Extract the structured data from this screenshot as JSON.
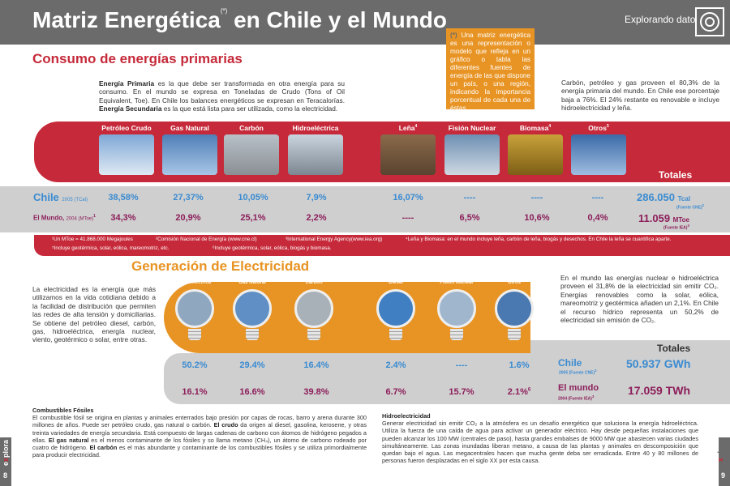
{
  "header": {
    "title": "Matriz Energética",
    "title_ref": "(*)",
    "title_rest": "en Chile y el Mundo",
    "section": "Explorando datos",
    "logo_icon": "target-arrow-icon"
  },
  "primary": {
    "heading": "Consumo de energías primarias",
    "intro_b1": "Energía Primaria",
    "intro_1": " es la que debe ser transformada en otra energía para su consumo. En el mundo se expresa en Toneladas de Crudo (Tons of Oil Equivalent, Toe). En Chile los balances energéticos se expresan en Teracalorías. ",
    "intro_b2": "Energía Secundaria",
    "intro_2": " es la que está lista para ser utilizada, como la electricidad.",
    "callout_mark": "(*)",
    "callout": " Una matriz energética es una representación o modelo que refleja en un gráfico o tabla las diferentes fuentes de energía de las que dispone un país, o una región, indicando la importancia porcentual de cada una de éstas.",
    "side_text": "Carbón, petróleo y gas proveen el 80,3% de la energía primaria del mundo. En Chile ese porcentaje baja a 76%. El 24% restante es renovable e incluye hidroelectricidad y leña.",
    "categories": [
      {
        "label": "Petróleo Crudo",
        "sup": ""
      },
      {
        "label": "Gas Natural",
        "sup": ""
      },
      {
        "label": "Carbón",
        "sup": ""
      },
      {
        "label": "Hidroeléctrica",
        "sup": ""
      },
      {
        "label": "Leña",
        "sup": "4"
      },
      {
        "label": "Fisión Nuclear",
        "sup": ""
      },
      {
        "label": "Biomasa",
        "sup": "4"
      },
      {
        "label": "Otros",
        "sup": "5"
      }
    ],
    "totals_label": "Totales",
    "chile_label": "Chile",
    "chile_sub": "2005 (TCal)",
    "world_label": "El Mundo,",
    "world_sub": "2004 (MToe)",
    "world_sup": "1",
    "chile_values": [
      "38,58%",
      "27,37%",
      "10,05%",
      "7,9%",
      "16,07%",
      "----",
      "----",
      "----"
    ],
    "world_values": [
      "34,3%",
      "20,9%",
      "25,1%",
      "2,2%",
      "----",
      "6,5%",
      "10,6%",
      "0,4%"
    ],
    "chile_total": "286.050",
    "chile_total_unit": "Tcal",
    "chile_total_src": "(Fuente CNE)",
    "chile_total_src_sup": "2",
    "world_total": "11.059",
    "world_total_unit": "MToe",
    "world_total_src": "(Fuente IEA)",
    "world_total_src_sup": "3",
    "notes": [
      "¹Un MToe = 41.868.000 Megajoules",
      "²Comisión Nacional de Energía (www.cne.cl)",
      "³International Energy Agency(www.iea.org)",
      "⁴Leña y Biomasa: en el mundo incluye leña, carbón de leña, biogás y desechos. En Chile la leña se cuantifica aparte.",
      "⁵Incluye geotérmica, solar, eólica, mareomotriz, etc.",
      "⁶Incluye geotérmica, solar, eólica, biogás y biomasa."
    ]
  },
  "generation": {
    "heading": "Generación de Electricidad",
    "left_text": "La electricidad es la energía que más utilizamos en la vida cotidiana debido a la facilidad de distribución que permiten las redes de alta tensión y domiciliarias. Se obtiene del petróleo diesel, carbón, gas, hidroeléctrica, energía nuclear, viento, geotérmico o solar, entre otras.",
    "right_text": "En el mundo las energías nuclear e hidroeléctrica proveen el 31,8% de la electricidad sin emitir CO₂. Energías renovables como la solar, eólica, mareomotriz y geotérmica añaden un 2,1%. En Chile el recurso hídrico representa un 50,2% de electricidad sin emisión de CO₂.",
    "categories": [
      "Hidroeléctrica",
      "Gas Natural",
      "Carbón",
      "Diesel",
      "Fisión Nuclear",
      "Otros"
    ],
    "totals_label": "Totales",
    "chile_values": [
      "50.2%",
      "29.4%",
      "16.4%",
      "2.4%",
      "----",
      "1.6%"
    ],
    "world_values": [
      "16.1%",
      "16.6%",
      "39.8%",
      "6.7%",
      "15.7%",
      "2.1%"
    ],
    "world_last_sup": "6",
    "chile_label": "Chile",
    "chile_sub": "2005 (Fuente CNE)",
    "chile_sub_sup": "2",
    "chile_total": "50.937 GWh",
    "world_label": "El mundo",
    "world_sub": "2004 (Fuente IEA)",
    "world_sub_sup": "3",
    "world_total": "17.059 TWh"
  },
  "fossil": {
    "title": "Combustibles Fósiles",
    "p1": "El combustible fósil se origina en plantas y animales enterrados bajo presión por capas de rocas, barro y arena durante 300 millones de años. Puede ser petróleo crudo, gas natural o carbón. ",
    "b1": "El crudo",
    "p2": " da origen al diesel, gasolina, kerosene, y otras treinta variedades de energía secundaria. Está compuesto de largas cadenas de carbono con átomos de hidrógeno pegados a ellas. ",
    "b2": "El gas natural",
    "p3": " es el menos contaminante de los fósiles y so llama metano (CH₄), un átomo de carbono rodeado por cuatro de hidrógeno. ",
    "b3": "El carbón",
    "p4": " es el más abundante y contaminante de los combustibles fósiles y se utiliza primordialmente para producir electricidad."
  },
  "hydro": {
    "title": "Hidroelectricidad",
    "text": "Generar electricidad sin emitir CO₂ a la atmósfera es un desafío energético que soluciona la energía hidroeléctrica. Utiliza la fuerza de una caída de agua para activar un generador eléctrico. Hay desde pequeñas instalaciones que pueden alcanzar los 100 MW (centrales de paso), hasta grandes embalses de 9000 MW que abastecen varias ciudades simultáneamente.  Las zonas inundadas liberan metano, a causa de las plantas y animales en descomposición que quedan bajo el agua. Las megacentrales hacen que mucha gente deba ser erradicada. Entre 40 y 80 millones de personas fueron desplazadas en el siglo XX por esta causa."
  },
  "footer": {
    "brand_e": "e",
    "brand_x": "x",
    "brand_rest": "plora",
    "page_left": "8",
    "page_right": "9"
  }
}
